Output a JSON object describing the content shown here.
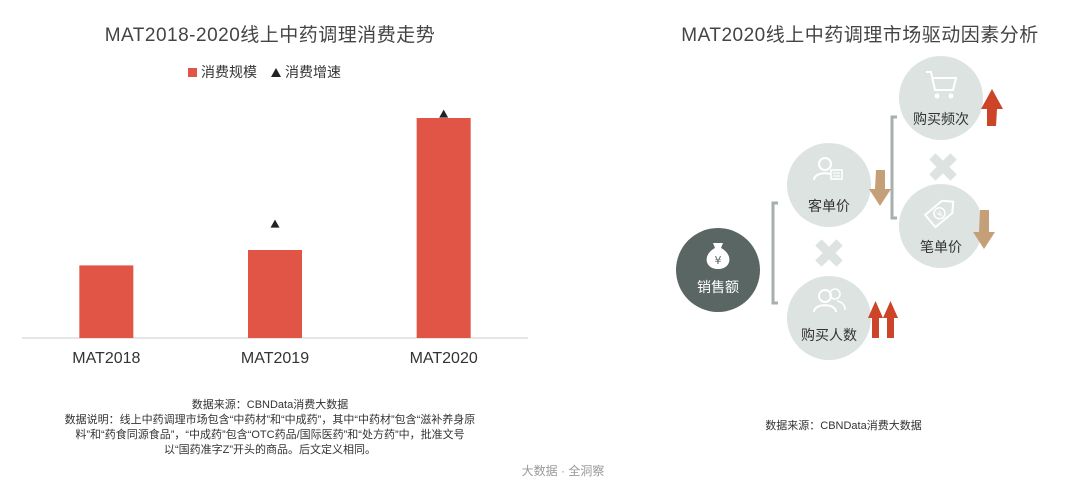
{
  "left_panel": {
    "title": "MAT2018-2020线上中药调理消费走势",
    "legend": {
      "consumption_label": "消费规模",
      "growth_label": "消费增速"
    },
    "source": "数据来源：CBNData消费大数据",
    "note_lines": [
      "数据说明：线上中药调理市场包含“中药材”和“中成药”，其中“中药材”包含“滋补养身原",
      "料”和“药食同源食品”，“中成药”包含“OTC药品/国际医药”和“处方药”中，批准文号",
      "以“国药准字Z”开头的商品。后文定义相同。"
    ]
  },
  "chart_data": {
    "type": "bar",
    "title": "MAT2018-2020线上中药调理消费走势",
    "categories": [
      "MAT2018",
      "MAT2019",
      "MAT2020"
    ],
    "series": [
      {
        "name": "消费规模",
        "type": "bar",
        "values": [
          0.33,
          0.4,
          1.0
        ]
      },
      {
        "name": "消费增速",
        "type": "marker",
        "values": [
          null,
          0.52,
          1.02
        ]
      }
    ],
    "ylim": [
      0,
      1.05
    ],
    "axis_ticks_shown": false,
    "grid": false,
    "legend_position": "top",
    "colors": {
      "bar": "#e05545",
      "marker": "#222222"
    }
  },
  "right_panel": {
    "title": "MAT2020线上中药调理市场驱动因素分析",
    "source": "数据来源：CBNData消费大数据",
    "nodes": {
      "sales": "销售额",
      "customer_price": "客单价",
      "buyers": "购买人数",
      "frequency": "购买频次",
      "item_price": "笔单价"
    },
    "trends": {
      "frequency": "up",
      "item_price": "down",
      "customer_price": "down",
      "buyers": "strong-up"
    },
    "colors": {
      "circle_light": "#dde3e1",
      "circle_dark": "#5a6663",
      "icon": "#ffffff",
      "up_arrow": "#cc4528",
      "down_arrow": "#c59f78",
      "cross": "#dde3e1",
      "bracket": "#a7b0ae"
    }
  },
  "watermark": "大数据 · 全洞察"
}
